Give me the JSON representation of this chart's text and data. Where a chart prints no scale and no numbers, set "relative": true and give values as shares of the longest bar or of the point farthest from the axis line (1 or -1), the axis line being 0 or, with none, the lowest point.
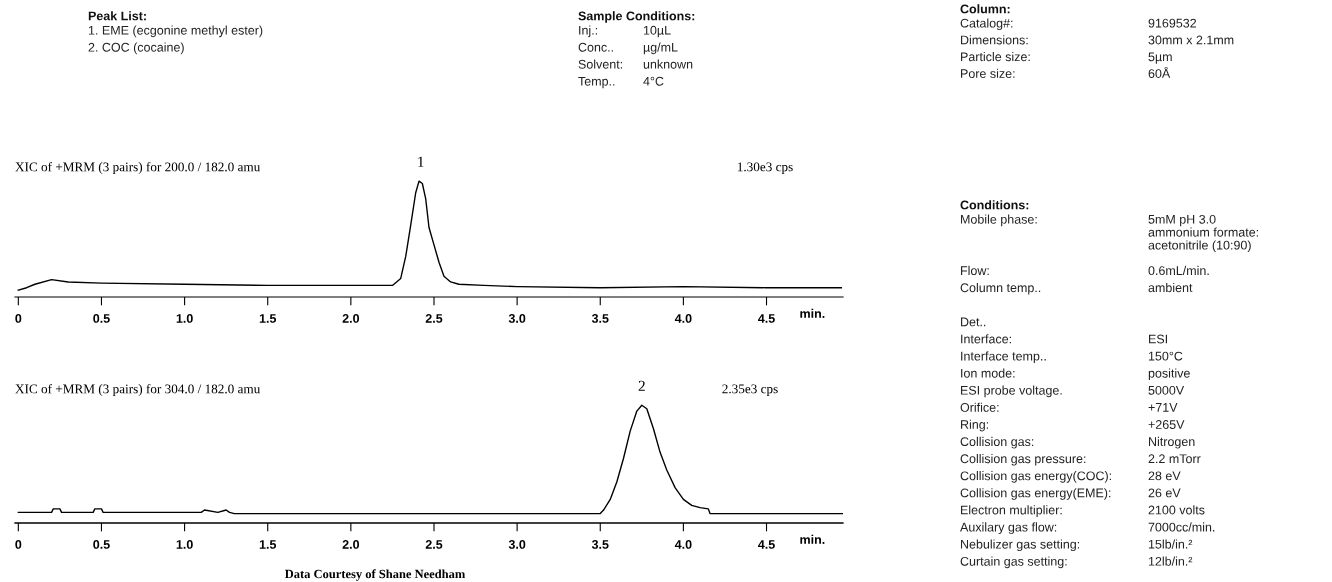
{
  "chart_data": [
    {
      "type": "other",
      "title": "Peak List:",
      "annotations": [
        "1. EME (ecgonine methyl ester)",
        "2. COC (cocaine)"
      ]
    },
    {
      "type": "other",
      "title": "Sample Conditions:",
      "annotations": [
        "Inj.:",
        "10µL",
        "Conc..",
        "µg/mL",
        "Solvent:",
        "unknown",
        "Temp..",
        "4°C"
      ]
    },
    {
      "type": "other",
      "title": "Column:",
      "annotations": [
        "Catalog#:",
        "9169532",
        "Dimensions:",
        "30mm x 2.1mm",
        "Particle size:",
        "5µm",
        "Pore size:",
        "60Å"
      ]
    },
    {
      "type": "line",
      "title": "XIC of +MRM (3 pairs) for 200.0 / 182.0 amu",
      "xlabel": "min.",
      "annotations": [
        {
          "text": "1",
          "x": 2.42,
          "y": 1.0
        },
        "1.30e3 cps"
      ],
      "x": [
        0,
        0.05,
        0.1,
        0.2,
        0.3,
        0.5,
        1.0,
        1.5,
        2.0,
        2.25,
        2.3,
        2.33,
        2.36,
        2.39,
        2.41,
        2.43,
        2.45,
        2.47,
        2.5,
        2.53,
        2.56,
        2.6,
        2.65,
        2.8,
        3.0,
        3.5,
        4.0,
        4.5,
        4.95
      ],
      "series": [
        {
          "color": "#000000",
          "values": [
            0.06,
            0.08,
            0.11,
            0.15,
            0.13,
            0.12,
            0.11,
            0.1,
            0.1,
            0.1,
            0.16,
            0.35,
            0.62,
            0.9,
            1.0,
            0.98,
            0.85,
            0.6,
            0.45,
            0.3,
            0.18,
            0.13,
            0.11,
            0.1,
            0.09,
            0.08,
            0.09,
            0.08,
            0.08
          ]
        }
      ],
      "relative": true,
      "xlim": [
        -0.02,
        4.96
      ],
      "tick_labels": "x",
      "xticks": [
        0,
        0.5,
        {
          "value": 1,
          "label": "1.0"
        },
        1.5,
        {
          "value": 2,
          "label": "2.0"
        },
        2.5,
        {
          "value": 3,
          "label": "3.0"
        },
        3.5,
        {
          "value": 4,
          "label": "4.0"
        },
        4.5
      ]
    },
    {
      "type": "other",
      "title": "Conditions:",
      "annotations": [
        "Mobile phase:",
        "5mM pH 3.0\nammonium formate:\nacetonitrile (10:90)",
        "Flow:",
        "0.6mL/min.",
        "Column temp..",
        "ambient",
        "Det..",
        "Interface:",
        "ESI",
        "Interface temp..",
        "150°C",
        "Ion mode:",
        "positive",
        "ESI probe voltage.",
        "5000V",
        "Orifice:",
        "+71V",
        "Ring:",
        "+265V",
        "Collision gas:",
        "Nitrogen",
        "Collision gas pressure:",
        "2.2 mTorr",
        "Collision gas energy(COC):",
        "28 eV",
        "Collision gas energy(EME):",
        "26 eV",
        "Electron multiplier:",
        "2100 volts",
        "Auxilary gas flow:",
        "7000cc/min.",
        "Nebulizer gas setting:",
        "15lb/in.²",
        "Curtain gas setting:",
        "12lb/in.²"
      ]
    },
    {
      "type": "line",
      "title": "XIC of +MRM (3 pairs) for 304.0 / 182.0 amu",
      "xlabel": "min.",
      "annotations": [
        {
          "text": "2",
          "x": 3.75,
          "y": 1.0
        },
        "2.35e3 cps",
        "Data Courtesy of Shane Needham"
      ],
      "x": [
        0,
        0.2,
        0.21,
        0.25,
        0.26,
        0.45,
        0.46,
        0.5,
        0.51,
        1.0,
        1.1,
        1.12,
        1.2,
        1.25,
        1.27,
        1.3,
        2.0,
        3.0,
        3.5,
        3.52,
        3.56,
        3.6,
        3.64,
        3.68,
        3.72,
        3.75,
        3.78,
        3.82,
        3.86,
        3.9,
        3.95,
        4.0,
        4.05,
        4.1,
        4.15,
        4.16,
        4.5,
        4.96
      ],
      "series": [
        {
          "color": "#000000",
          "values": [
            0.09,
            0.09,
            0.12,
            0.12,
            0.09,
            0.09,
            0.12,
            0.12,
            0.09,
            0.09,
            0.09,
            0.11,
            0.09,
            0.11,
            0.09,
            0.08,
            0.08,
            0.08,
            0.08,
            0.11,
            0.2,
            0.35,
            0.55,
            0.78,
            0.95,
            1.0,
            0.97,
            0.8,
            0.6,
            0.45,
            0.3,
            0.2,
            0.15,
            0.13,
            0.12,
            0.08,
            0.08,
            0.08
          ]
        }
      ],
      "relative": true,
      "xlim": [
        -0.02,
        4.96
      ],
      "tick_labels": "x",
      "xticks": [
        0,
        0.5,
        {
          "value": 1,
          "label": "1.0"
        },
        1.5,
        {
          "value": 2,
          "label": "2.0"
        },
        2.5,
        {
          "value": 3,
          "label": "3.0"
        },
        3.5,
        {
          "value": 4,
          "label": "4.0"
        },
        4.5
      ]
    }
  ]
}
